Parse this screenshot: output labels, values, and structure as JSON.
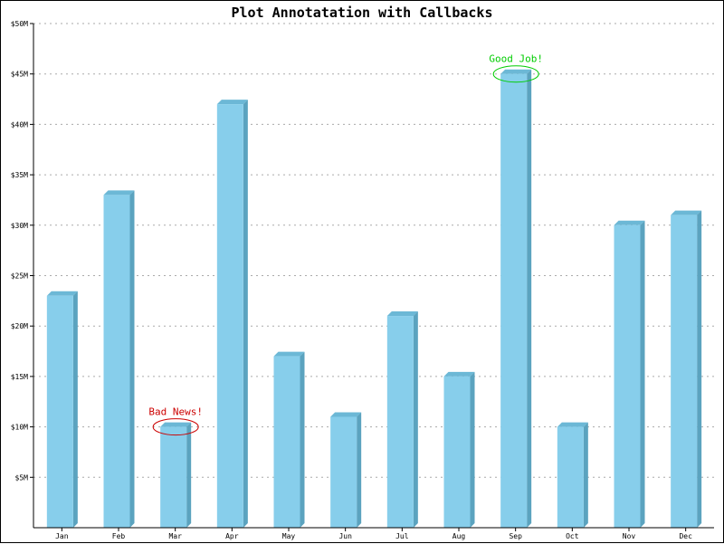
{
  "chart_data": {
    "type": "bar",
    "title": "Plot Annotatation with Callbacks",
    "xlabel": "",
    "ylabel": "",
    "categories": [
      "Jan",
      "Feb",
      "Mar",
      "Apr",
      "May",
      "Jun",
      "Jul",
      "Aug",
      "Sep",
      "Oct",
      "Nov",
      "Dec"
    ],
    "values": [
      23,
      33,
      10,
      42,
      17,
      11,
      21,
      15,
      45,
      10,
      30,
      31
    ],
    "unit": "$M",
    "ylim": [
      0,
      50
    ],
    "yticks": [
      5,
      10,
      15,
      20,
      25,
      30,
      35,
      40,
      45,
      50
    ],
    "ytick_labels": [
      "$5M",
      "$10M",
      "$15M",
      "$20M",
      "$25M",
      "$30M",
      "$35M",
      "$40M",
      "$45M",
      "$50M"
    ],
    "grid": true,
    "bar_style": "3d",
    "annotations": [
      {
        "category": "Mar",
        "text": "Bad News!",
        "color": "#cc0000"
      },
      {
        "category": "Sep",
        "text": "Good Job!",
        "color": "#00cc00"
      }
    ]
  },
  "colors": {
    "bar_front": "#87ceeb",
    "bar_side": "#5ba3bf",
    "bar_top": "#6cb8d6",
    "grid": "#aaaaaa",
    "axis": "#000000"
  }
}
